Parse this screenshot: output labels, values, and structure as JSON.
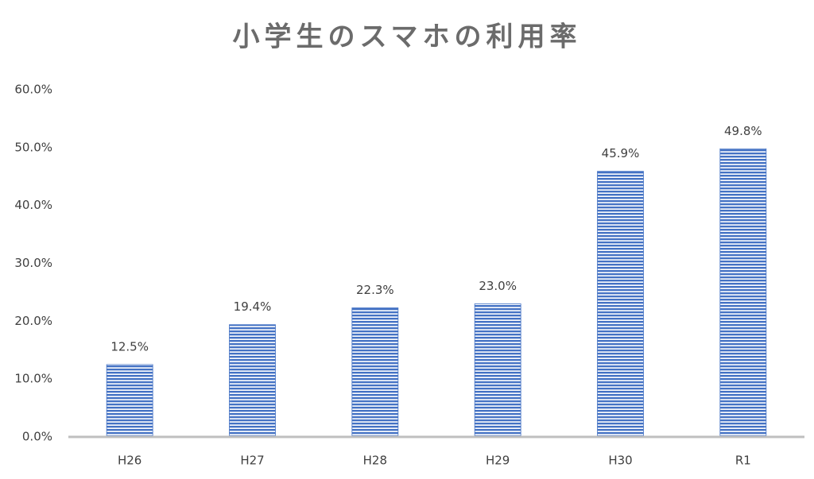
{
  "chart_data": {
    "type": "bar",
    "title": "小学生のスマホの利用率",
    "categories": [
      "H26",
      "H27",
      "H28",
      "H29",
      "H30",
      "R1"
    ],
    "values": [
      12.5,
      19.4,
      22.3,
      23.0,
      45.9,
      49.8
    ],
    "value_labels": [
      "12.5%",
      "19.4%",
      "22.3%",
      "23.0%",
      "45.9%",
      "49.8%"
    ],
    "color": "#4472c4",
    "ylim": [
      0,
      60
    ],
    "yticks": [
      {
        "value": 0,
        "label": "0.0%"
      },
      {
        "value": 10,
        "label": "10.0%"
      },
      {
        "value": 20,
        "label": "20.0%"
      },
      {
        "value": 30,
        "label": "30.0%"
      },
      {
        "value": 40,
        "label": "40.0%"
      },
      {
        "value": 50,
        "label": "50.0%"
      },
      {
        "value": 60,
        "label": "60.0%"
      }
    ],
    "grid": false
  }
}
